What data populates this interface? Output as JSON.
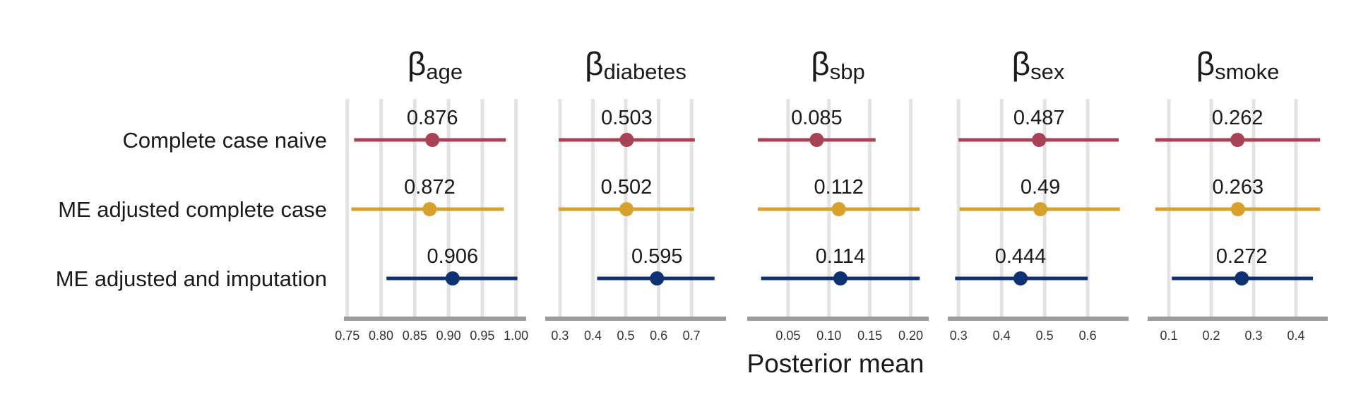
{
  "chart_data": {
    "type": "forest",
    "xlabel": "Posterior mean",
    "categories": [
      "Complete case naive",
      "ME adjusted complete case",
      "ME adjusted and imputation"
    ],
    "series_colors": [
      "#a84355",
      "#d7a12d",
      "#0e3173"
    ],
    "panels": [
      {
        "symbol": "β",
        "subscript": "age",
        "xlim": [
          0.745,
          1.015
        ],
        "ticks": [
          0.75,
          0.8,
          0.85,
          0.9,
          0.95,
          1.0
        ],
        "tick_labels": [
          "0.75",
          "0.80",
          "0.85",
          "0.90",
          "0.95",
          "1.00"
        ],
        "points": [
          {
            "mean": 0.876,
            "label": "0.876",
            "lower": 0.76,
            "upper": 0.985
          },
          {
            "mean": 0.872,
            "label": "0.872",
            "lower": 0.756,
            "upper": 0.982
          },
          {
            "mean": 0.906,
            "label": "0.906",
            "lower": 0.808,
            "upper": 1.002
          }
        ]
      },
      {
        "symbol": "β",
        "subscript": "diabetes",
        "xlim": [
          0.255,
          0.805
        ],
        "ticks": [
          0.3,
          0.4,
          0.5,
          0.6,
          0.7
        ],
        "tick_labels": [
          "0.3",
          "0.4",
          "0.5",
          "0.6",
          "0.7"
        ],
        "points": [
          {
            "mean": 0.503,
            "label": "0.503",
            "lower": 0.296,
            "upper": 0.71
          },
          {
            "mean": 0.502,
            "label": "0.502",
            "lower": 0.296,
            "upper": 0.708
          },
          {
            "mean": 0.595,
            "label": "0.595",
            "lower": 0.413,
            "upper": 0.77
          }
        ]
      },
      {
        "symbol": "β",
        "subscript": "sbp",
        "xlim": [
          0.0,
          0.222
        ],
        "ticks": [
          0.05,
          0.1,
          0.15,
          0.2
        ],
        "tick_labels": [
          "0.05",
          "0.10",
          "0.15",
          "0.20"
        ],
        "points": [
          {
            "mean": 0.085,
            "label": "0.085",
            "lower": 0.013,
            "upper": 0.157
          },
          {
            "mean": 0.112,
            "label": "0.112",
            "lower": 0.013,
            "upper": 0.211
          },
          {
            "mean": 0.114,
            "label": "0.114",
            "lower": 0.017,
            "upper": 0.211
          }
        ]
      },
      {
        "symbol": "β",
        "subscript": "sex",
        "xlim": [
          0.275,
          0.695
        ],
        "ticks": [
          0.3,
          0.4,
          0.5,
          0.6
        ],
        "tick_labels": [
          "0.3",
          "0.4",
          "0.5",
          "0.6"
        ],
        "points": [
          {
            "mean": 0.487,
            "label": "0.487",
            "lower": 0.3,
            "upper": 0.672
          },
          {
            "mean": 0.49,
            "label": "0.49",
            "lower": 0.302,
            "upper": 0.675
          },
          {
            "mean": 0.444,
            "label": "0.444",
            "lower": 0.292,
            "upper": 0.6
          }
        ]
      },
      {
        "symbol": "β",
        "subscript": "smoke",
        "xlim": [
          0.05,
          0.475
        ],
        "ticks": [
          0.1,
          0.2,
          0.3,
          0.4
        ],
        "tick_labels": [
          "0.1",
          "0.2",
          "0.3",
          "0.4"
        ],
        "points": [
          {
            "mean": 0.262,
            "label": "0.262",
            "lower": 0.068,
            "upper": 0.457
          },
          {
            "mean": 0.263,
            "label": "0.263",
            "lower": 0.068,
            "upper": 0.457
          },
          {
            "mean": 0.272,
            "label": "0.272",
            "lower": 0.107,
            "upper": 0.44
          }
        ]
      }
    ]
  }
}
